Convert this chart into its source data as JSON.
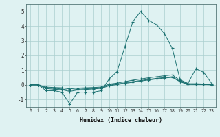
{
  "xlabel": "Humidex (Indice chaleur)",
  "x": [
    0,
    1,
    2,
    3,
    4,
    5,
    6,
    7,
    8,
    9,
    10,
    11,
    12,
    13,
    14,
    15,
    16,
    17,
    18,
    19,
    20,
    21,
    22,
    23
  ],
  "line1": [
    0.0,
    0.0,
    -0.4,
    -0.4,
    -0.5,
    -1.3,
    -0.5,
    -0.5,
    -0.5,
    -0.4,
    0.4,
    0.9,
    2.6,
    4.3,
    5.0,
    4.4,
    4.1,
    3.5,
    2.5,
    0.35,
    0.1,
    1.1,
    0.85,
    0.1
  ],
  "line2": [
    0.0,
    0.0,
    -0.15,
    -0.18,
    -0.2,
    -0.28,
    -0.22,
    -0.2,
    -0.18,
    -0.15,
    0.05,
    0.12,
    0.22,
    0.32,
    0.4,
    0.48,
    0.55,
    0.62,
    0.68,
    0.3,
    0.08,
    0.08,
    0.06,
    0.02
  ],
  "line3": [
    0.0,
    0.0,
    -0.2,
    -0.24,
    -0.28,
    -0.38,
    -0.3,
    -0.27,
    -0.24,
    -0.2,
    -0.02,
    0.06,
    0.14,
    0.22,
    0.3,
    0.37,
    0.44,
    0.5,
    0.55,
    0.24,
    0.05,
    0.04,
    0.03,
    0.01
  ],
  "line4": [
    0.0,
    0.0,
    -0.25,
    -0.3,
    -0.33,
    -0.45,
    -0.35,
    -0.32,
    -0.28,
    -0.24,
    -0.06,
    0.02,
    0.1,
    0.18,
    0.26,
    0.33,
    0.4,
    0.46,
    0.51,
    0.21,
    0.03,
    0.02,
    0.02,
    0.0
  ],
  "line_color": "#1a7070",
  "bg_color": "#dff2f2",
  "grid_color": "#aacfcf",
  "ylim": [
    -1.5,
    5.5
  ],
  "xlim": [
    -0.5,
    23.5
  ],
  "yticks": [
    -1,
    0,
    1,
    2,
    3,
    4,
    5
  ],
  "xticks": [
    0,
    1,
    2,
    3,
    4,
    5,
    6,
    7,
    8,
    9,
    10,
    11,
    12,
    13,
    14,
    15,
    16,
    17,
    18,
    19,
    20,
    21,
    22,
    23
  ]
}
